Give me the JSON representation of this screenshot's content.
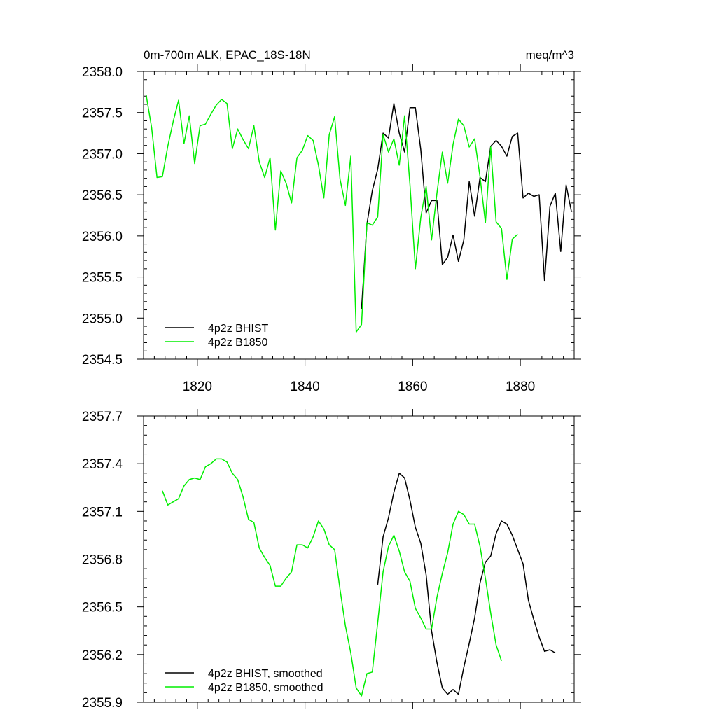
{
  "chart_data": [
    {
      "type": "line",
      "title": "0m-700m ALK, EPAC_18S-18N",
      "units": "meq/m^3",
      "xlim": [
        1810,
        1890
      ],
      "ylim": [
        2354.5,
        2358.0
      ],
      "x_ticks": [
        1820,
        1840,
        1860,
        1880
      ],
      "x_tick_labels": [
        "1820",
        "1840",
        "1860",
        "1880"
      ],
      "y_ticks": [
        2354.5,
        2355.0,
        2355.5,
        2356.0,
        2356.5,
        2357.0,
        2357.5,
        2358.0
      ],
      "y_tick_labels": [
        "2354.5",
        "2355.0",
        "2355.5",
        "2356.0",
        "2356.5",
        "2357.0",
        "2357.5",
        "2358.0"
      ],
      "legend_position": "bottom-left",
      "series": [
        {
          "name": "4p2z BHIST",
          "color": "#000000",
          "x": [
            1850.5,
            1851.5,
            1852.5,
            1853.5,
            1854.5,
            1855.5,
            1856.5,
            1857.5,
            1858.5,
            1859.5,
            1860.5,
            1861.5,
            1862.5,
            1863.5,
            1864.5,
            1865.5,
            1866.5,
            1867.5,
            1868.5,
            1869.5,
            1870.5,
            1871.5,
            1872.5,
            1873.5,
            1874.5,
            1875.5,
            1876.5,
            1877.5,
            1878.5,
            1879.5,
            1880.5,
            1881.5,
            1882.5,
            1883.5,
            1884.5,
            1885.5,
            1886.5,
            1887.5,
            1888.5,
            1889.5
          ],
          "y": [
            2355.11,
            2356.14,
            2356.55,
            2356.81,
            2357.25,
            2357.19,
            2357.61,
            2357.25,
            2357.02,
            2357.56,
            2357.56,
            2357.05,
            2356.28,
            2356.43,
            2356.43,
            2355.65,
            2355.74,
            2356.01,
            2355.69,
            2355.95,
            2356.66,
            2356.24,
            2356.71,
            2356.66,
            2357.09,
            2357.16,
            2357.09,
            2356.97,
            2357.21,
            2357.25,
            2356.46,
            2356.52,
            2356.48,
            2356.5,
            2355.45,
            2356.36,
            2356.52,
            2355.81,
            2356.62,
            2356.29
          ]
        },
        {
          "name": "4p2z B1850",
          "color": "#00ee00",
          "x": [
            1810.5,
            1811.5,
            1812.5,
            1813.5,
            1814.5,
            1815.5,
            1816.5,
            1817.5,
            1818.5,
            1819.5,
            1820.5,
            1821.5,
            1822.5,
            1823.5,
            1824.5,
            1825.5,
            1826.5,
            1827.5,
            1828.5,
            1829.5,
            1830.5,
            1831.5,
            1832.5,
            1833.5,
            1834.5,
            1835.5,
            1836.5,
            1837.5,
            1838.5,
            1839.5,
            1840.5,
            1841.5,
            1842.5,
            1843.5,
            1844.5,
            1845.5,
            1846.5,
            1847.5,
            1848.5,
            1849.5,
            1850.5,
            1851.5,
            1852.5,
            1853.5,
            1854.5,
            1855.5,
            1856.5,
            1857.5,
            1858.5,
            1859.5,
            1860.5,
            1861.5,
            1862.5,
            1863.5,
            1864.5,
            1865.5,
            1866.5,
            1867.5,
            1868.5,
            1869.5,
            1870.5,
            1871.5,
            1872.5,
            1873.5,
            1874.5,
            1875.5,
            1876.5,
            1877.5,
            1878.5,
            1879.5
          ],
          "y": [
            2357.71,
            2357.32,
            2356.71,
            2356.72,
            2357.09,
            2357.39,
            2357.65,
            2357.12,
            2357.46,
            2356.88,
            2357.34,
            2357.36,
            2357.48,
            2357.59,
            2357.66,
            2357.61,
            2357.06,
            2357.3,
            2357.17,
            2357.06,
            2357.34,
            2356.9,
            2356.71,
            2356.95,
            2356.07,
            2356.79,
            2356.64,
            2356.4,
            2356.95,
            2357.04,
            2357.22,
            2357.16,
            2356.86,
            2356.46,
            2357.23,
            2357.45,
            2356.69,
            2356.37,
            2356.97,
            2354.83,
            2354.92,
            2356.16,
            2356.13,
            2356.23,
            2357.23,
            2357.02,
            2357.18,
            2356.86,
            2357.46,
            2356.62,
            2355.6,
            2356.22,
            2356.6,
            2355.95,
            2356.52,
            2357.02,
            2356.64,
            2357.11,
            2357.42,
            2357.34,
            2357.08,
            2357.18,
            2356.72,
            2356.16,
            2357.08,
            2356.17,
            2356.09,
            2355.47,
            2355.96,
            2356.02
          ]
        }
      ]
    },
    {
      "type": "line",
      "xlim": [
        1810,
        1890
      ],
      "ylim": [
        2355.9,
        2357.7
      ],
      "x_ticks": [
        1820,
        1840,
        1860,
        1880
      ],
      "y_ticks": [
        2355.9,
        2356.2,
        2356.5,
        2356.8,
        2357.1,
        2357.4,
        2357.7
      ],
      "y_tick_labels": [
        "2355.9",
        "2356.2",
        "2356.5",
        "2356.8",
        "2357.1",
        "2357.4",
        "2357.7"
      ],
      "legend_position": "bottom-left",
      "series": [
        {
          "name": "4p2z BHIST, smoothed",
          "color": "#000000",
          "x": [
            1853.5,
            1854.5,
            1855.5,
            1856.5,
            1857.5,
            1858.5,
            1859.5,
            1860.5,
            1861.5,
            1862.5,
            1863.5,
            1864.5,
            1865.5,
            1866.5,
            1867.5,
            1868.5,
            1869.5,
            1870.5,
            1871.5,
            1872.5,
            1873.5,
            1874.5,
            1875.5,
            1876.5,
            1877.5,
            1878.5,
            1879.5,
            1880.5,
            1881.5,
            1882.5,
            1883.5,
            1884.5,
            1885.5,
            1886.5
          ],
          "y": [
            2356.64,
            2356.94,
            2357.06,
            2357.22,
            2357.34,
            2357.31,
            2357.17,
            2357.0,
            2356.9,
            2356.7,
            2356.35,
            2356.15,
            2355.99,
            2355.95,
            2355.98,
            2355.95,
            2356.12,
            2356.27,
            2356.43,
            2356.65,
            2356.78,
            2356.82,
            2356.96,
            2357.04,
            2357.02,
            2356.95,
            2356.86,
            2356.77,
            2356.54,
            2356.42,
            2356.31,
            2356.22,
            2356.23,
            2356.21
          ]
        },
        {
          "name": "4p2z B1850, smoothed",
          "color": "#00ee00",
          "x": [
            1813.5,
            1814.5,
            1815.5,
            1816.5,
            1817.5,
            1818.5,
            1819.5,
            1820.5,
            1821.5,
            1822.5,
            1823.5,
            1824.5,
            1825.5,
            1826.5,
            1827.5,
            1828.5,
            1829.5,
            1830.5,
            1831.5,
            1832.5,
            1833.5,
            1834.5,
            1835.5,
            1836.5,
            1837.5,
            1838.5,
            1839.5,
            1840.5,
            1841.5,
            1842.5,
            1843.5,
            1844.5,
            1845.5,
            1846.5,
            1847.5,
            1848.5,
            1849.5,
            1850.5,
            1851.5,
            1852.5,
            1853.5,
            1854.5,
            1855.5,
            1856.5,
            1857.5,
            1858.5,
            1859.5,
            1860.5,
            1861.5,
            1862.5,
            1863.5,
            1864.5,
            1865.5,
            1866.5,
            1867.5,
            1868.5,
            1869.5,
            1870.5,
            1871.5,
            1872.5,
            1873.5,
            1874.5,
            1875.5,
            1876.5
          ],
          "y": [
            2357.23,
            2357.14,
            2357.16,
            2357.18,
            2357.26,
            2357.3,
            2357.31,
            2357.3,
            2357.38,
            2357.4,
            2357.43,
            2357.43,
            2357.41,
            2357.34,
            2357.3,
            2357.19,
            2357.05,
            2357.03,
            2356.87,
            2356.81,
            2356.76,
            2356.63,
            2356.63,
            2356.68,
            2356.72,
            2356.89,
            2356.89,
            2356.87,
            2356.94,
            2357.04,
            2356.99,
            2356.89,
            2356.86,
            2356.61,
            2356.38,
            2356.21,
            2355.99,
            2355.94,
            2356.08,
            2356.09,
            2356.4,
            2356.72,
            2356.88,
            2356.95,
            2356.85,
            2356.72,
            2356.66,
            2356.49,
            2356.43,
            2356.36,
            2356.36,
            2356.56,
            2356.71,
            2356.84,
            2357.02,
            2357.1,
            2357.08,
            2357.02,
            2357.02,
            2356.88,
            2356.68,
            2356.46,
            2356.26,
            2356.16
          ]
        }
      ]
    }
  ]
}
